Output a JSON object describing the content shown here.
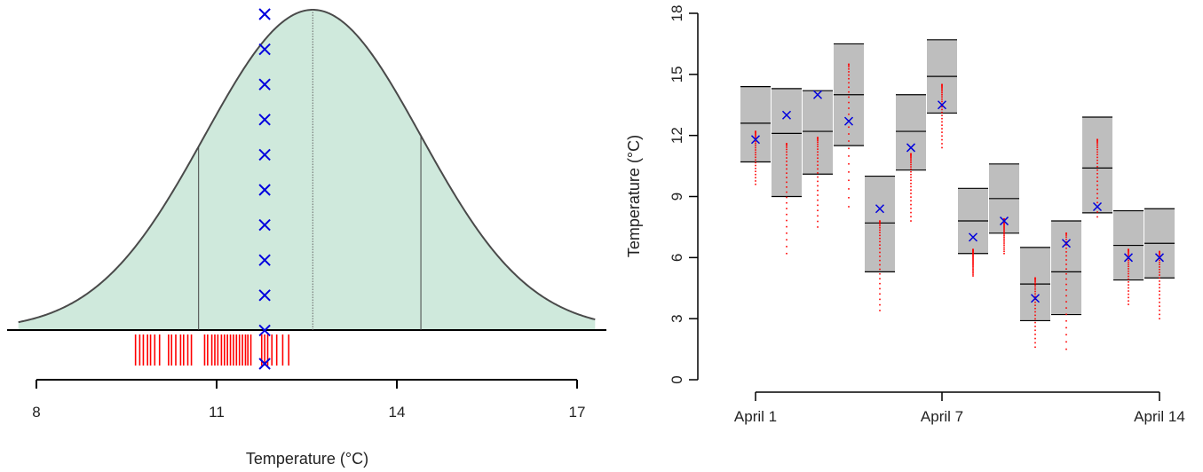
{
  "colors": {
    "density_fill": "#cfe9dc",
    "density_line": "#4a4a4a",
    "rug": "#ff0000",
    "cross": "#0000dd",
    "box_fill": "#bebebe",
    "box_line": "#000000",
    "points": "#ff0000"
  },
  "chart_data": [
    {
      "type": "area",
      "description_free": true,
      "xlabel": "Temperature (°C)",
      "ylabel": "",
      "xlim": [
        8,
        17.3
      ],
      "x_ticks": [
        8,
        11,
        14,
        17
      ],
      "x_tick_labels": [
        "8",
        "11",
        "14",
        "17"
      ],
      "distribution": {
        "mean": 12.6,
        "sd": 1.8,
        "interval": [
          10.7,
          14.4
        ]
      },
      "cross_x": 11.8,
      "cross_count": 10,
      "rug_values": [
        9.65,
        9.72,
        9.78,
        9.85,
        9.9,
        9.97,
        10.05,
        10.2,
        10.25,
        10.32,
        10.4,
        10.45,
        10.52,
        10.58,
        10.8,
        10.85,
        10.92,
        10.97,
        11.02,
        11.08,
        11.13,
        11.18,
        11.23,
        11.28,
        11.33,
        11.38,
        11.43,
        11.48,
        11.52,
        11.57,
        11.75,
        11.8,
        11.85,
        11.92,
        12.0,
        12.1,
        12.2
      ],
      "rug_cross_x": 11.8
    },
    {
      "type": "box",
      "xlabel": "",
      "ylabel": "Temperature (°C)",
      "ylim": [
        0,
        18
      ],
      "y_ticks": [
        0,
        3,
        6,
        9,
        12,
        15,
        18
      ],
      "y_tick_labels": [
        "0",
        "3",
        "6",
        "9",
        "12",
        "15",
        "18"
      ],
      "x_ticks": [
        1,
        7,
        14
      ],
      "x_tick_labels": [
        "April 1",
        "April 7",
        "April 14"
      ],
      "days": [
        {
          "day": 1,
          "low": 10.7,
          "mid": 12.6,
          "high": 14.4,
          "obs": 11.8,
          "pts_min": 9.6,
          "pts_max": 12.2
        },
        {
          "day": 2,
          "low": 9.0,
          "mid": 12.1,
          "high": 14.3,
          "obs": 13.0,
          "pts_min": 6.2,
          "pts_max": 11.6
        },
        {
          "day": 3,
          "low": 10.1,
          "mid": 12.2,
          "high": 14.2,
          "obs": 14.0,
          "pts_min": 7.5,
          "pts_max": 11.9
        },
        {
          "day": 4,
          "low": 11.5,
          "mid": 14.0,
          "high": 16.5,
          "obs": 12.7,
          "pts_min": 8.5,
          "pts_max": 15.5
        },
        {
          "day": 5,
          "low": 5.3,
          "mid": 7.7,
          "high": 10.0,
          "obs": 8.4,
          "pts_min": 3.4,
          "pts_max": 7.8
        },
        {
          "day": 6,
          "low": 10.3,
          "mid": 12.2,
          "high": 14.0,
          "obs": 11.4,
          "pts_min": 7.8,
          "pts_max": 11.1
        },
        {
          "day": 7,
          "low": 13.1,
          "mid": 14.9,
          "high": 16.7,
          "obs": 13.5,
          "pts_min": 11.4,
          "pts_max": 14.5
        },
        {
          "day": 8,
          "low": 6.2,
          "mid": 7.8,
          "high": 9.4,
          "obs": 7.0,
          "pts_min": 5.1,
          "pts_max": 6.4
        },
        {
          "day": 9,
          "low": 7.2,
          "mid": 8.9,
          "high": 10.6,
          "obs": 7.8,
          "pts_min": 6.2,
          "pts_max": 7.9
        },
        {
          "day": 10,
          "low": 2.9,
          "mid": 4.7,
          "high": 6.5,
          "obs": 4.0,
          "pts_min": 1.6,
          "pts_max": 5.0
        },
        {
          "day": 11,
          "low": 3.2,
          "mid": 5.3,
          "high": 7.8,
          "obs": 6.7,
          "pts_min": 1.5,
          "pts_max": 7.2
        },
        {
          "day": 12,
          "low": 8.2,
          "mid": 10.4,
          "high": 12.9,
          "obs": 8.5,
          "pts_min": 8.0,
          "pts_max": 11.8
        },
        {
          "day": 13,
          "low": 4.9,
          "mid": 6.6,
          "high": 8.3,
          "obs": 6.0,
          "pts_min": 3.7,
          "pts_max": 6.4
        },
        {
          "day": 14,
          "low": 5.0,
          "mid": 6.7,
          "high": 8.4,
          "obs": 6.0,
          "pts_min": 3.0,
          "pts_max": 6.3
        }
      ]
    }
  ]
}
